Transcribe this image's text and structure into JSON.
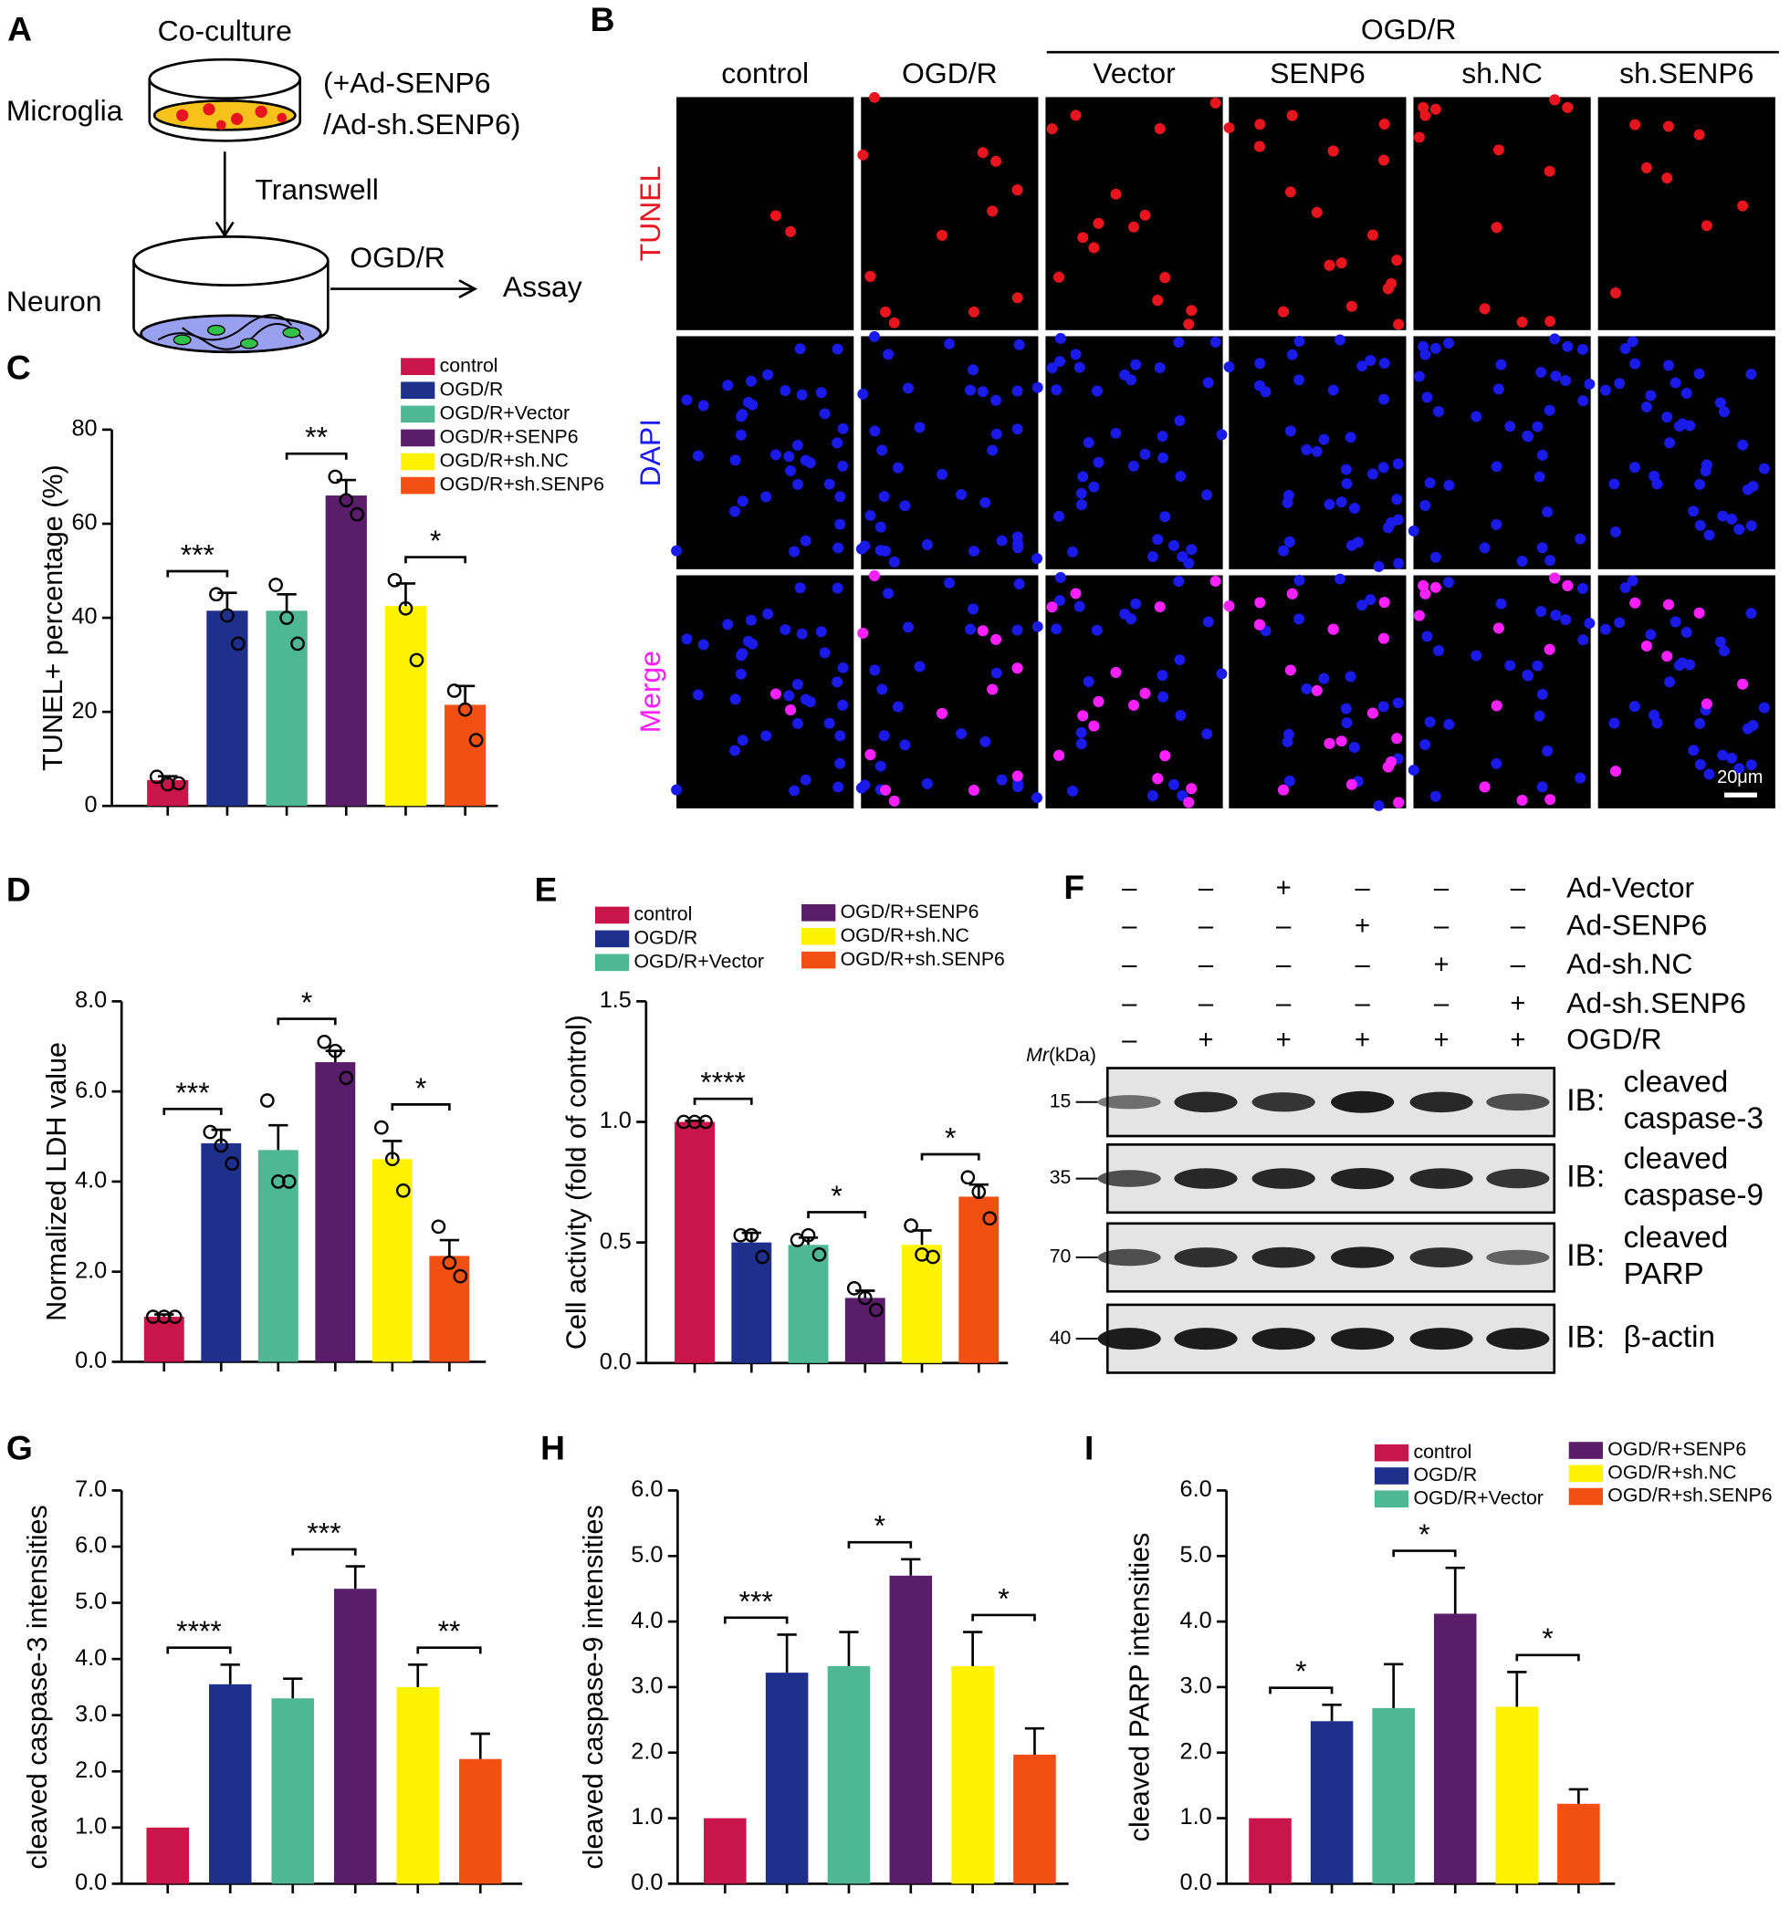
{
  "panels": {
    "A": {
      "letter": "A",
      "coculture": "Co-culture",
      "microglia": "Microglia",
      "treatment_1": "(+Ad-SENP6",
      "treatment_2": "/Ad-sh.SENP6)",
      "transwell": "Transwell",
      "neuron": "Neuron",
      "ogdr": "OGD/R",
      "assay": "Assay"
    },
    "B": {
      "letter": "B",
      "group": "OGD/R",
      "columns": [
        "control",
        "OGD/R",
        "Vector",
        "SENP6",
        "sh.NC",
        "sh.SENP6"
      ],
      "rows": [
        {
          "label": "TUNEL",
          "color": "#e8141e"
        },
        {
          "label": "DAPI",
          "color": "#1a1aeb"
        },
        {
          "label": "Merge",
          "color": "#ff20ff"
        }
      ],
      "scale_bar": "20μm"
    },
    "F": {
      "letter": "F",
      "treatments": [
        {
          "label": "Ad-Vector",
          "signs": [
            "–",
            "–",
            "+",
            "–",
            "–",
            "–"
          ]
        },
        {
          "label": "Ad-SENP6",
          "signs": [
            "–",
            "–",
            "–",
            "+",
            "–",
            "–"
          ]
        },
        {
          "label": "Ad-sh.NC",
          "signs": [
            "–",
            "–",
            "–",
            "–",
            "+",
            "–"
          ]
        },
        {
          "label": "Ad-sh.SENP6",
          "signs": [
            "–",
            "–",
            "–",
            "–",
            "–",
            "+"
          ]
        },
        {
          "label": "OGD/R",
          "signs": [
            "–",
            "+",
            "+",
            "+",
            "+",
            "+"
          ]
        }
      ],
      "mr": "Mr",
      "mr_unit": "(kDa)",
      "blots": [
        {
          "marker": "15",
          "label": [
            "IB:",
            "cleaved",
            "caspase-3"
          ]
        },
        {
          "marker": "35",
          "label": [
            "IB:",
            "cleaved",
            "caspase-9"
          ]
        },
        {
          "marker": "70",
          "label": [
            "IB:",
            "cleaved",
            "PARP"
          ]
        },
        {
          "marker": "40",
          "label": [
            "IB:",
            "β-actin"
          ]
        }
      ]
    }
  },
  "chart_data": [
    {
      "type": "bar",
      "panel": "C",
      "ylabel": "TUNEL+ percentage (%)",
      "categories": [
        null,
        null,
        null,
        null,
        null,
        null
      ],
      "values": [
        5.5,
        41.5,
        41.5,
        66,
        42.5,
        21.5
      ],
      "errors": [
        0.8,
        3.8,
        3.5,
        3.3,
        4.8,
        4
      ],
      "points": [
        [
          6.2,
          4.6,
          4.8
        ],
        [
          45,
          40.5,
          34.5
        ],
        [
          47,
          40,
          34.5
        ],
        [
          70,
          65,
          62
        ],
        [
          48,
          42,
          31
        ],
        [
          24.5,
          20.5,
          14
        ]
      ],
      "colors": [
        "#c8154a",
        "#1e2f8c",
        "#4db893",
        "#5a1d6a",
        "#fff200",
        "#f24f12"
      ],
      "legend": [
        "control",
        "OGD/R",
        "OGD/R+Vector",
        "OGD/R+SENP6",
        "OGD/R+sh.NC",
        "OGD/R+sh.SENP6"
      ],
      "significance": [
        "***",
        "**",
        "*"
      ],
      "ylim": [
        0,
        80
      ],
      "yticks": [
        0,
        20,
        40,
        60,
        80
      ]
    },
    {
      "type": "bar",
      "panel": "D",
      "ylabel": "Normalized LDH value",
      "categories": [
        null,
        null,
        null,
        null,
        null,
        null
      ],
      "values": [
        1.0,
        4.85,
        4.7,
        6.65,
        4.5,
        2.35
      ],
      "errors": [
        0.05,
        0.3,
        0.55,
        0.25,
        0.4,
        0.35
      ],
      "points": [
        [
          1,
          1,
          1
        ],
        [
          5.1,
          4.8,
          4.4
        ],
        [
          5.8,
          4.0,
          4.0
        ],
        [
          7.1,
          6.9,
          6.3
        ],
        [
          5.2,
          4.5,
          3.8
        ],
        [
          3.0,
          2.2,
          1.9
        ]
      ],
      "colors": [
        "#c8154a",
        "#1e2f8c",
        "#4db893",
        "#5a1d6a",
        "#fff200",
        "#f24f12"
      ],
      "significance": [
        "***",
        "*",
        "*"
      ],
      "ylim": [
        0,
        8
      ],
      "yticks": [
        {
          "value": 0,
          "label": "0.0"
        },
        {
          "value": 2,
          "label": "2.0"
        },
        {
          "value": 4,
          "label": "4.0"
        },
        {
          "value": 6,
          "label": "6.0"
        },
        {
          "value": 8,
          "label": "8.0"
        }
      ]
    },
    {
      "type": "bar",
      "panel": "E",
      "ylabel": "Cell activity (fold of control)",
      "categories": [
        null,
        null,
        null,
        null,
        null,
        null
      ],
      "values": [
        1.0,
        0.5,
        0.49,
        0.27,
        0.49,
        0.69
      ],
      "errors": [
        0.005,
        0.04,
        0.03,
        0.03,
        0.06,
        0.05
      ],
      "points": [
        [
          1,
          1,
          1
        ],
        [
          0.53,
          0.53,
          0.44
        ],
        [
          0.51,
          0.53,
          0.45
        ],
        [
          0.31,
          0.27,
          0.22
        ],
        [
          0.57,
          0.45,
          0.44
        ],
        [
          0.77,
          0.71,
          0.6
        ]
      ],
      "colors": [
        "#c8154a",
        "#1e2f8c",
        "#4db893",
        "#5a1d6a",
        "#fff200",
        "#f24f12"
      ],
      "legend": [
        "control",
        "OGD/R",
        "OGD/R+Vector",
        "OGD/R+SENP6",
        "OGD/R+sh.NC",
        "OGD/R+sh.SENP6"
      ],
      "significance": [
        "****",
        "*",
        "*"
      ],
      "ylim": [
        0,
        1.5
      ],
      "yticks": [
        {
          "value": 0,
          "label": "0.0"
        },
        {
          "value": 0.5,
          "label": "0.5"
        },
        {
          "value": 1,
          "label": "1.0"
        },
        {
          "value": 1.5,
          "label": "1.5"
        }
      ]
    },
    {
      "type": "bar",
      "panel": "G",
      "ylabel": "cleaved caspase-3 intensities",
      "categories": [
        null,
        null,
        null,
        null,
        null,
        null
      ],
      "values": [
        1.0,
        3.55,
        3.3,
        5.25,
        3.5,
        2.22
      ],
      "errors": [
        0,
        0.35,
        0.35,
        0.4,
        0.4,
        0.45
      ],
      "colors": [
        "#c8154a",
        "#1e2f8c",
        "#4db893",
        "#5a1d6a",
        "#fff200",
        "#f24f12"
      ],
      "significance": [
        "****",
        "***",
        "**"
      ],
      "ylim": [
        0,
        7
      ],
      "yticks": [
        {
          "value": 0,
          "label": "0.0"
        },
        {
          "value": 1,
          "label": "1.0"
        },
        {
          "value": 2,
          "label": "2.0"
        },
        {
          "value": 3,
          "label": "3.0"
        },
        {
          "value": 4,
          "label": "4.0"
        },
        {
          "value": 5,
          "label": "5.0"
        },
        {
          "value": 6,
          "label": "6.0"
        },
        {
          "value": 7,
          "label": "7.0"
        }
      ]
    },
    {
      "type": "bar",
      "panel": "H",
      "ylabel": "cleaved caspase-9 intensities",
      "categories": [
        null,
        null,
        null,
        null,
        null,
        null
      ],
      "values": [
        1.0,
        3.22,
        3.32,
        4.7,
        3.32,
        1.97
      ],
      "errors": [
        0,
        0.58,
        0.52,
        0.25,
        0.52,
        0.4
      ],
      "colors": [
        "#c8154a",
        "#1e2f8c",
        "#4db893",
        "#5a1d6a",
        "#fff200",
        "#f24f12"
      ],
      "significance": [
        "***",
        "*",
        "*"
      ],
      "ylim": [
        0,
        6
      ],
      "yticks": [
        {
          "value": 0,
          "label": "0.0"
        },
        {
          "value": 1,
          "label": "1.0"
        },
        {
          "value": 2,
          "label": "2.0"
        },
        {
          "value": 3,
          "label": "3.0"
        },
        {
          "value": 4,
          "label": "4.0"
        },
        {
          "value": 5,
          "label": "5.0"
        },
        {
          "value": 6,
          "label": "6.0"
        }
      ]
    },
    {
      "type": "bar",
      "panel": "I",
      "ylabel": "cleaved PARP intensities",
      "categories": [
        null,
        null,
        null,
        null,
        null,
        null
      ],
      "values": [
        1.0,
        2.48,
        2.68,
        4.12,
        2.7,
        1.22
      ],
      "errors": [
        0,
        0.25,
        0.67,
        0.7,
        0.53,
        0.22
      ],
      "colors": [
        "#c8154a",
        "#1e2f8c",
        "#4db893",
        "#5a1d6a",
        "#fff200",
        "#f24f12"
      ],
      "legend": [
        "control",
        "OGD/R",
        "OGD/R+Vector",
        "OGD/R+SENP6",
        "OGD/R+sh.NC",
        "OGD/R+sh.SENP6"
      ],
      "significance": [
        "*",
        "*",
        "*"
      ],
      "ylim": [
        0,
        6
      ],
      "yticks": [
        {
          "value": 0,
          "label": "0.0"
        },
        {
          "value": 1,
          "label": "1.0"
        },
        {
          "value": 2,
          "label": "2.0"
        },
        {
          "value": 3,
          "label": "3.0"
        },
        {
          "value": 4,
          "label": "4.0"
        },
        {
          "value": 5,
          "label": "5.0"
        },
        {
          "value": 6,
          "label": "6.0"
        }
      ]
    }
  ]
}
